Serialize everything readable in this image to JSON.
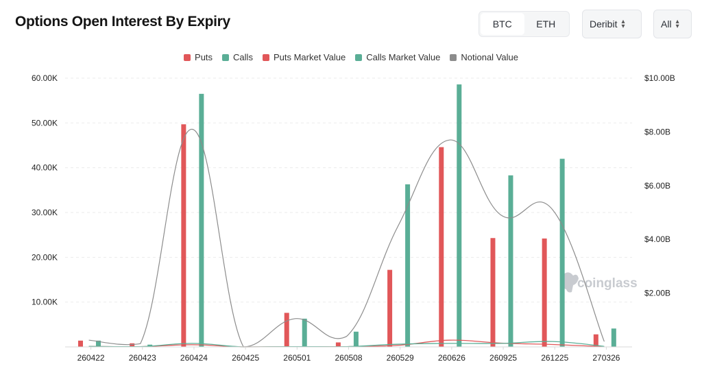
{
  "header": {
    "title": "Options Open Interest By Expiry",
    "asset_tabs": [
      "BTC",
      "ETH"
    ],
    "active_asset": "BTC",
    "exchange": "Deribit",
    "range": "All"
  },
  "watermark": "coinglass",
  "colors": {
    "puts": "#e15759",
    "calls": "#5aae96",
    "notional": "#8c8c8c"
  },
  "chart_data": {
    "type": "bar",
    "title": "Options Open Interest By Expiry",
    "categories": [
      "260422",
      "260423",
      "260424",
      "260425",
      "260501",
      "260508",
      "260529",
      "260626",
      "260925",
      "261225",
      "270326"
    ],
    "legend": [
      "Puts",
      "Calls",
      "Puts Market Value",
      "Calls Market Value",
      "Notional Value"
    ],
    "legend_position": "top-center",
    "grid": true,
    "y_left": {
      "min": 0,
      "max": 60000,
      "ticks": [
        "60.00K",
        "50.00K",
        "40.00K",
        "30.00K",
        "20.00K",
        "10.00K"
      ],
      "tick_values": [
        60000,
        50000,
        40000,
        30000,
        20000,
        10000
      ]
    },
    "y_right": {
      "min": 0,
      "max": 10000000000,
      "ticks": [
        "$10.00B",
        "$8.00B",
        "$6.00B",
        "$4.00B",
        "$2.00B"
      ],
      "tick_values": [
        10000000000,
        8000000000,
        6000000000,
        4000000000,
        2000000000
      ]
    },
    "series": [
      {
        "name": "Puts",
        "type": "bar",
        "axis": "left",
        "values": [
          1400,
          800,
          49700,
          0,
          7600,
          1000,
          17200,
          44600,
          24300,
          24200,
          2800
        ]
      },
      {
        "name": "Calls",
        "type": "bar",
        "axis": "left",
        "values": [
          1400,
          500,
          56500,
          0,
          6300,
          3400,
          36300,
          58600,
          38300,
          42000,
          4100
        ]
      },
      {
        "name": "Puts Market Value",
        "type": "line",
        "axis": "right",
        "values": [
          20000000,
          10000000,
          80000000,
          0,
          10000000,
          10000000,
          60000000,
          250000000,
          140000000,
          90000000,
          10000000
        ]
      },
      {
        "name": "Calls Market Value",
        "type": "line",
        "axis": "right",
        "values": [
          20000000,
          10000000,
          130000000,
          0,
          10000000,
          10000000,
          100000000,
          130000000,
          130000000,
          200000000,
          20000000
        ]
      },
      {
        "name": "Notional Value",
        "type": "line",
        "axis": "right",
        "values": [
          250000000,
          120000000,
          8100000000,
          0,
          1050000000,
          390000000,
          4500000000,
          7700000000,
          4900000000,
          5100000000,
          200000000
        ]
      }
    ]
  }
}
